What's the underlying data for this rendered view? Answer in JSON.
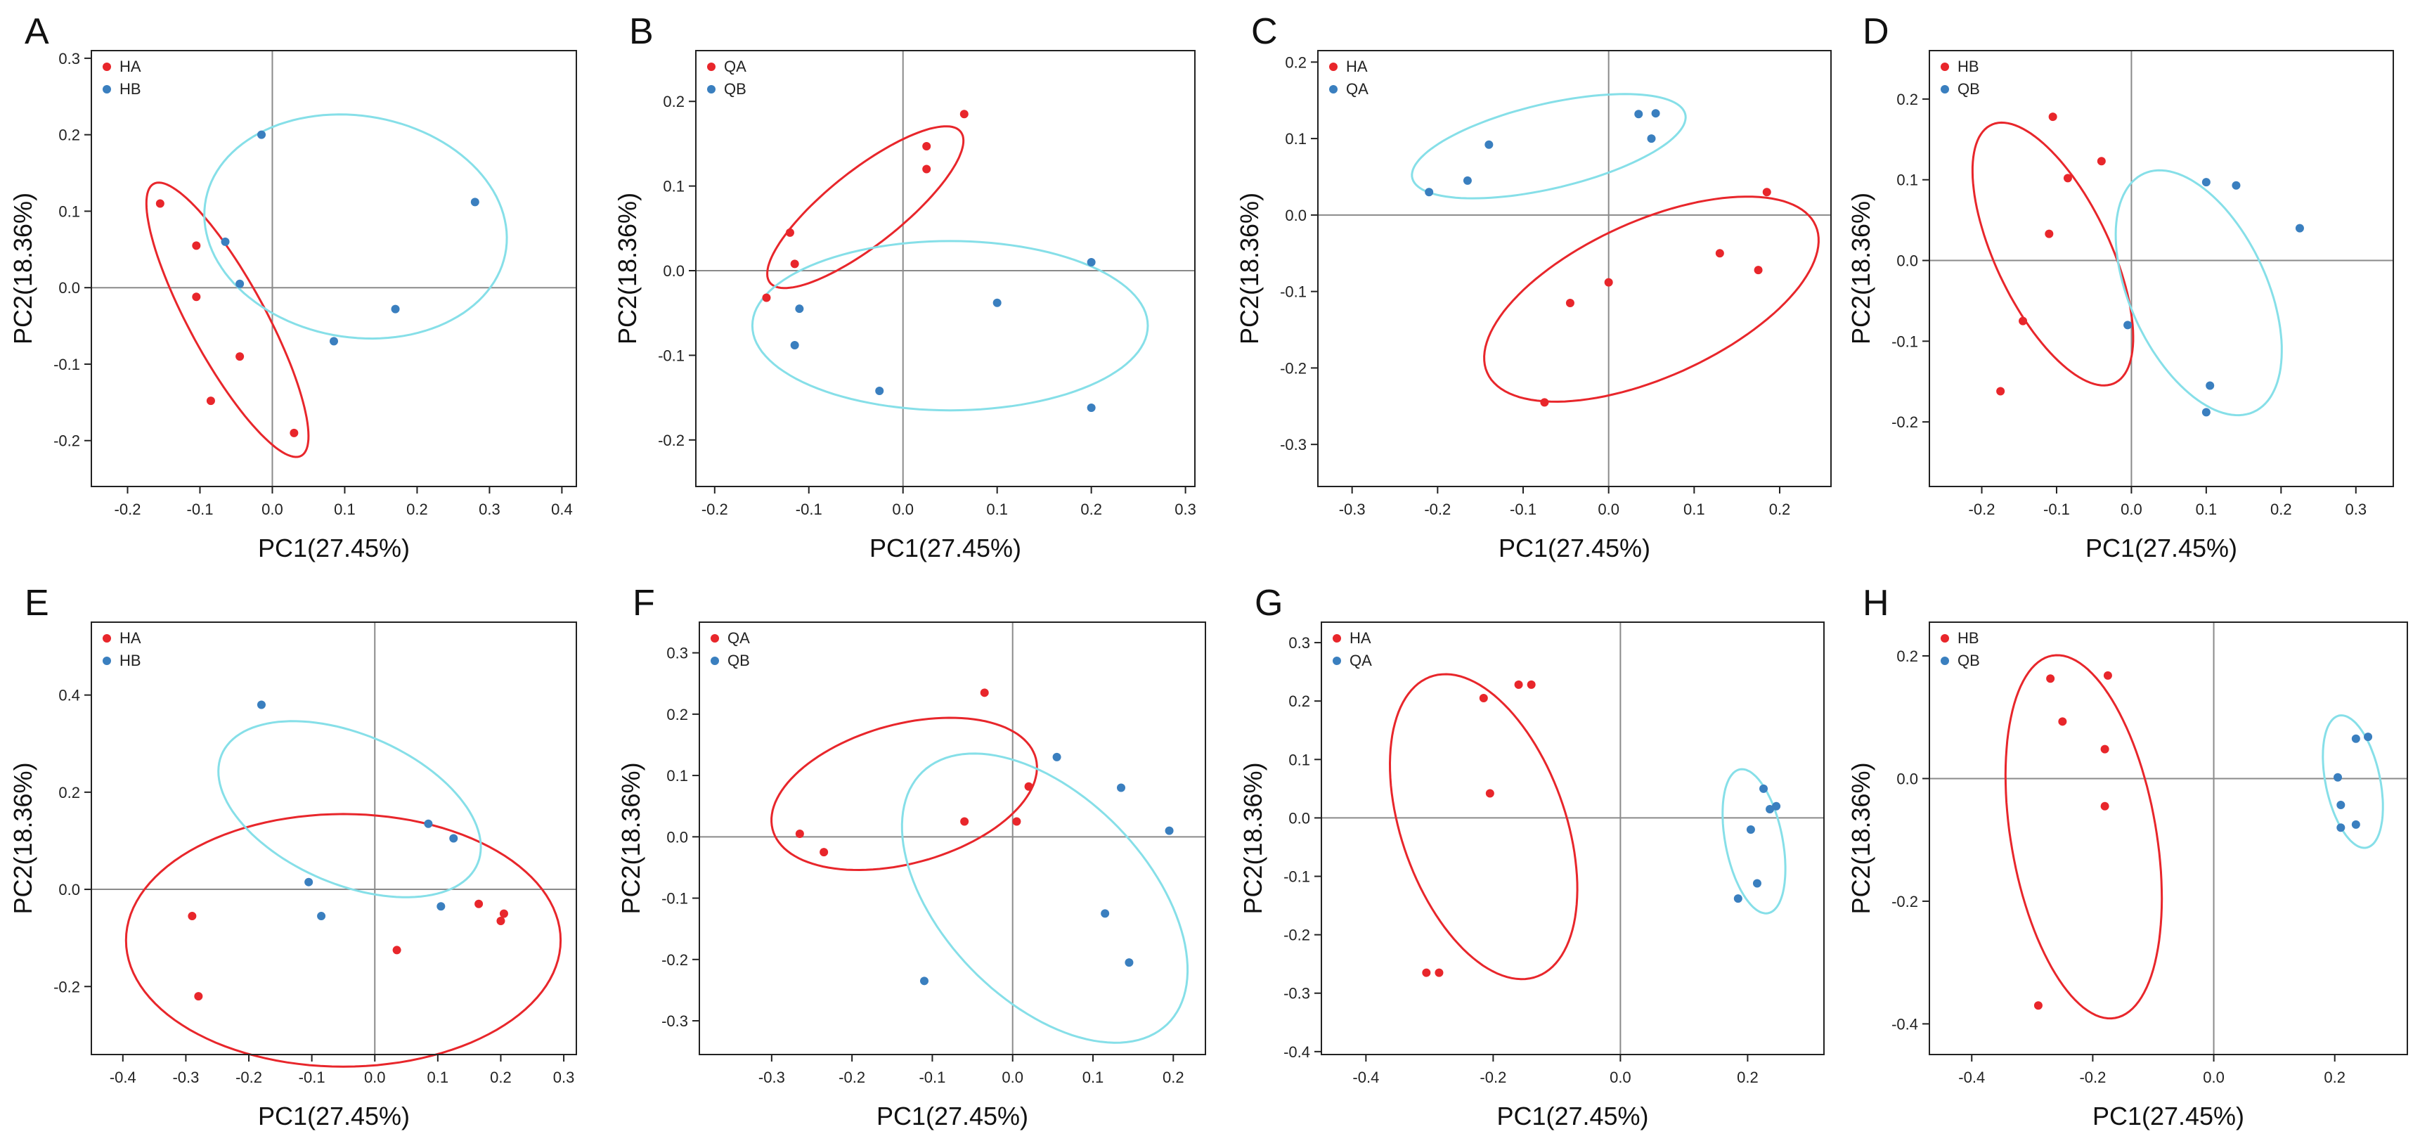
{
  "colors": {
    "red": "#e8262b",
    "blue": "#3a7fbf",
    "ellipse_blue": "#86dfe8",
    "ellipse_red": "#e8262b",
    "axis": "#222222",
    "zero": "#8a8a8a"
  },
  "chart_data": [
    {
      "type": "scatter",
      "panel_label": "A",
      "xlabel": "PC1(27.45%)",
      "ylabel": "PC2(18.36%)",
      "xlim": [
        -0.25,
        0.42
      ],
      "ylim": [
        -0.26,
        0.31
      ],
      "xticks": [
        -0.2,
        -0.1,
        0.0,
        0.1,
        0.2,
        0.3,
        0.4
      ],
      "xtick_labels": [
        "-0.2",
        "-0.1",
        "0.0",
        "0.1",
        "0.2",
        "0.3",
        "0.4"
      ],
      "yticks": [
        -0.2,
        -0.1,
        0.0,
        0.1,
        0.2,
        0.3
      ],
      "ytick_labels": [
        "-0.2",
        "-0.1",
        "0.0",
        "0.1",
        "0.2",
        "0.3"
      ],
      "series": [
        {
          "name": "HA",
          "color": "red",
          "points": [
            [
              -0.155,
              0.11
            ],
            [
              -0.105,
              0.055
            ],
            [
              -0.105,
              -0.012
            ],
            [
              -0.045,
              -0.09
            ],
            [
              -0.085,
              -0.148
            ],
            [
              0.03,
              -0.19
            ]
          ],
          "ellipse": {
            "cx": -0.062,
            "cy": -0.042,
            "rx": 0.205,
            "ry": 0.052,
            "angle": -60
          }
        },
        {
          "name": "HB",
          "color": "blue",
          "points": [
            [
              -0.015,
              0.2
            ],
            [
              -0.065,
              0.06
            ],
            [
              -0.045,
              0.005
            ],
            [
              0.085,
              -0.07
            ],
            [
              0.17,
              -0.028
            ],
            [
              0.28,
              0.112
            ]
          ],
          "ellipse": {
            "cx": 0.115,
            "cy": 0.08,
            "rx": 0.21,
            "ry": 0.145,
            "angle": -8
          }
        }
      ]
    },
    {
      "type": "scatter",
      "panel_label": "B",
      "xlabel": "PC1(27.45%)",
      "ylabel": "PC2(18.36%)",
      "xlim": [
        -0.22,
        0.31
      ],
      "ylim": [
        -0.255,
        0.26
      ],
      "xticks": [
        -0.2,
        -0.1,
        0.0,
        0.1,
        0.2,
        0.3
      ],
      "xtick_labels": [
        "-0.2",
        "-0.1",
        "0.0",
        "0.1",
        "0.2",
        "0.3"
      ],
      "yticks": [
        -0.2,
        -0.1,
        0.0,
        0.1,
        0.2
      ],
      "ytick_labels": [
        "-0.2",
        "-0.1",
        "0.0",
        "0.1",
        "0.2"
      ],
      "series": [
        {
          "name": "QA",
          "color": "red",
          "points": [
            [
              0.065,
              0.185
            ],
            [
              0.025,
              0.147
            ],
            [
              0.025,
              0.12
            ],
            [
              -0.12,
              0.045
            ],
            [
              -0.115,
              0.008
            ],
            [
              -0.145,
              -0.032
            ]
          ],
          "ellipse": {
            "cx": -0.04,
            "cy": 0.075,
            "rx": 0.135,
            "ry": 0.042,
            "angle": 42
          }
        },
        {
          "name": "QB",
          "color": "blue",
          "points": [
            [
              0.2,
              0.01
            ],
            [
              0.1,
              -0.038
            ],
            [
              -0.11,
              -0.045
            ],
            [
              -0.115,
              -0.088
            ],
            [
              -0.025,
              -0.142
            ],
            [
              0.2,
              -0.162
            ]
          ],
          "ellipse": {
            "cx": 0.05,
            "cy": -0.065,
            "rx": 0.21,
            "ry": 0.1,
            "angle": 0
          }
        }
      ]
    },
    {
      "type": "scatter",
      "panel_label": "C",
      "xlabel": "PC1(27.45%)",
      "ylabel": "PC2(18.36%)",
      "xlim": [
        -0.34,
        0.26
      ],
      "ylim": [
        -0.355,
        0.215
      ],
      "xticks": [
        -0.3,
        -0.2,
        -0.1,
        0.0,
        0.1,
        0.2
      ],
      "xtick_labels": [
        "-0.3",
        "-0.2",
        "-0.1",
        "0.0",
        "0.1",
        "0.2"
      ],
      "yticks": [
        -0.3,
        -0.2,
        -0.1,
        0.0,
        0.1,
        0.2
      ],
      "ytick_labels": [
        "-0.3",
        "-0.2",
        "-0.1",
        "0.0",
        "0.1",
        "0.2"
      ],
      "series": [
        {
          "name": "HA",
          "color": "red",
          "points": [
            [
              0.185,
              0.03
            ],
            [
              0.13,
              -0.05
            ],
            [
              0.175,
              -0.072
            ],
            [
              0.0,
              -0.088
            ],
            [
              -0.045,
              -0.115
            ],
            [
              -0.075,
              -0.245
            ]
          ],
          "ellipse": {
            "cx": 0.05,
            "cy": -0.11,
            "rx": 0.215,
            "ry": 0.1,
            "angle": 28
          }
        },
        {
          "name": "QA",
          "color": "blue",
          "points": [
            [
              0.035,
              0.132
            ],
            [
              0.055,
              0.133
            ],
            [
              0.05,
              0.1
            ],
            [
              -0.14,
              0.092
            ],
            [
              -0.165,
              0.045
            ],
            [
              -0.21,
              0.03
            ]
          ],
          "ellipse": {
            "cx": -0.07,
            "cy": 0.09,
            "rx": 0.165,
            "ry": 0.055,
            "angle": 15
          }
        }
      ]
    },
    {
      "type": "scatter",
      "panel_label": "D",
      "xlabel": "PC1(27.45%)",
      "ylabel": "PC2(18.36%)",
      "xlim": [
        -0.27,
        0.35
      ],
      "ylim": [
        -0.28,
        0.26
      ],
      "xticks": [
        -0.2,
        -0.1,
        0.0,
        0.1,
        0.2,
        0.3
      ],
      "xtick_labels": [
        "-0.2",
        "-0.1",
        "0.0",
        "0.1",
        "0.2",
        "0.3"
      ],
      "yticks": [
        -0.2,
        -0.1,
        0.0,
        0.1,
        0.2
      ],
      "ytick_labels": [
        "-0.2",
        "-0.1",
        "0.0",
        "0.1",
        "0.2"
      ],
      "series": [
        {
          "name": "HB",
          "color": "red",
          "points": [
            [
              -0.105,
              0.178
            ],
            [
              -0.04,
              0.123
            ],
            [
              -0.085,
              0.102
            ],
            [
              -0.11,
              0.033
            ],
            [
              -0.145,
              -0.075
            ],
            [
              -0.175,
              -0.162
            ]
          ],
          "ellipse": {
            "cx": -0.105,
            "cy": 0.008,
            "rx": 0.18,
            "ry": 0.075,
            "angle": -62
          }
        },
        {
          "name": "QB",
          "color": "blue",
          "points": [
            [
              0.1,
              0.097
            ],
            [
              0.14,
              0.093
            ],
            [
              0.225,
              0.04
            ],
            [
              -0.005,
              -0.08
            ],
            [
              0.105,
              -0.155
            ],
            [
              0.1,
              -0.188
            ]
          ],
          "ellipse": {
            "cx": 0.09,
            "cy": -0.04,
            "rx": 0.165,
            "ry": 0.09,
            "angle": -62
          }
        }
      ]
    },
    {
      "type": "scatter",
      "panel_label": "E",
      "xlabel": "PC1(27.45%)",
      "ylabel": "PC2(18.36%)",
      "xlim": [
        -0.45,
        0.32
      ],
      "ylim": [
        -0.34,
        0.55
      ],
      "xticks": [
        -0.4,
        -0.3,
        -0.2,
        -0.1,
        0.0,
        0.1,
        0.2,
        0.3
      ],
      "xtick_labels": [
        "-0.4",
        "-0.3",
        "-0.2",
        "-0.1",
        "0.0",
        "0.1",
        "0.2",
        "0.3"
      ],
      "yticks": [
        -0.2,
        0.0,
        0.2,
        0.4
      ],
      "ytick_labels": [
        "-0.2",
        "0.0",
        "0.2",
        "0.4"
      ],
      "series": [
        {
          "name": "HA",
          "color": "red",
          "points": [
            [
              -0.29,
              -0.055
            ],
            [
              -0.28,
              -0.22
            ],
            [
              0.035,
              -0.125
            ],
            [
              0.165,
              -0.03
            ],
            [
              0.205,
              -0.05
            ],
            [
              0.2,
              -0.065
            ]
          ],
          "ellipse": {
            "cx": -0.05,
            "cy": -0.105,
            "rx": 0.345,
            "ry": 0.26,
            "angle": 0
          }
        },
        {
          "name": "HB",
          "color": "blue",
          "points": [
            [
              -0.18,
              0.38
            ],
            [
              0.085,
              0.135
            ],
            [
              0.125,
              0.105
            ],
            [
              -0.105,
              0.015
            ],
            [
              -0.085,
              -0.055
            ],
            [
              0.105,
              -0.035
            ]
          ],
          "ellipse": {
            "cx": -0.04,
            "cy": 0.165,
            "rx": 0.235,
            "ry": 0.145,
            "angle": -36
          }
        }
      ]
    },
    {
      "type": "scatter",
      "panel_label": "F",
      "xlabel": "PC1(27.45%)",
      "ylabel": "PC2(18.36%)",
      "xlim": [
        -0.39,
        0.24
      ],
      "ylim": [
        -0.355,
        0.35
      ],
      "xticks": [
        -0.3,
        -0.2,
        -0.1,
        0.0,
        0.1,
        0.2
      ],
      "xtick_labels": [
        "-0.3",
        "-0.2",
        "-0.1",
        "0.0",
        "0.1",
        "0.2"
      ],
      "yticks": [
        -0.3,
        -0.2,
        -0.1,
        0.0,
        0.1,
        0.2,
        0.3
      ],
      "ytick_labels": [
        "-0.3",
        "-0.2",
        "-0.1",
        "0.0",
        "0.1",
        "0.2",
        "0.3"
      ],
      "series": [
        {
          "name": "QA",
          "color": "red",
          "points": [
            [
              -0.035,
              0.235
            ],
            [
              -0.265,
              0.005
            ],
            [
              -0.235,
              -0.025
            ],
            [
              -0.06,
              0.025
            ],
            [
              0.005,
              0.025
            ],
            [
              0.02,
              0.082
            ]
          ],
          "ellipse": {
            "cx": -0.135,
            "cy": 0.07,
            "rx": 0.175,
            "ry": 0.11,
            "angle": 25
          }
        },
        {
          "name": "QB",
          "color": "blue",
          "points": [
            [
              0.055,
              0.13
            ],
            [
              0.135,
              0.08
            ],
            [
              0.195,
              0.01
            ],
            [
              0.115,
              -0.125
            ],
            [
              -0.11,
              -0.235
            ],
            [
              0.145,
              -0.205
            ]
          ],
          "ellipse": {
            "cx": 0.04,
            "cy": -0.1,
            "rx": 0.26,
            "ry": 0.14,
            "angle": -60
          }
        }
      ]
    },
    {
      "type": "scatter",
      "panel_label": "G",
      "xlabel": "PC1(27.45%)",
      "ylabel": "PC2(18.36%)",
      "xlim": [
        -0.47,
        0.32
      ],
      "ylim": [
        -0.405,
        0.335
      ],
      "xticks": [
        -0.4,
        -0.2,
        0.0,
        0.2
      ],
      "xtick_labels": [
        "-0.4",
        "-0.2",
        "0.0",
        "0.2"
      ],
      "yticks": [
        -0.4,
        -0.3,
        -0.2,
        -0.1,
        0.0,
        0.1,
        0.2,
        0.3
      ],
      "ytick_labels": [
        "-0.4",
        "-0.3",
        "-0.2",
        "-0.1",
        "0.0",
        "0.1",
        "0.2",
        "0.3"
      ],
      "series": [
        {
          "name": "HA",
          "color": "red",
          "points": [
            [
              -0.16,
              0.228
            ],
            [
              -0.14,
              0.228
            ],
            [
              -0.215,
              0.205
            ],
            [
              -0.205,
              0.042
            ],
            [
              -0.305,
              -0.265
            ],
            [
              -0.285,
              -0.265
            ]
          ],
          "ellipse": {
            "cx": -0.215,
            "cy": -0.015,
            "rx": 0.27,
            "ry": 0.13,
            "angle": -73
          }
        },
        {
          "name": "QA",
          "color": "blue",
          "points": [
            [
              0.225,
              0.05
            ],
            [
              0.235,
              0.015
            ],
            [
              0.245,
              0.02
            ],
            [
              0.205,
              -0.02
            ],
            [
              0.215,
              -0.112
            ],
            [
              0.185,
              -0.138
            ]
          ],
          "ellipse": {
            "cx": 0.21,
            "cy": -0.04,
            "rx": 0.125,
            "ry": 0.045,
            "angle": -80
          }
        }
      ]
    },
    {
      "type": "scatter",
      "panel_label": "H",
      "xlabel": "PC1(27.45%)",
      "ylabel": "PC2(18.36%)",
      "xlim": [
        -0.47,
        0.32
      ],
      "ylim": [
        -0.45,
        0.255
      ],
      "xticks": [
        -0.4,
        -0.2,
        0.0,
        0.2
      ],
      "xtick_labels": [
        "-0.4",
        "-0.2",
        "0.0",
        "0.2"
      ],
      "yticks": [
        -0.4,
        -0.2,
        0.0,
        0.2
      ],
      "ytick_labels": [
        "-0.4",
        "-0.2",
        "0.0",
        "0.2"
      ],
      "series": [
        {
          "name": "HB",
          "color": "red",
          "points": [
            [
              -0.27,
              0.163
            ],
            [
              -0.175,
              0.168
            ],
            [
              -0.25,
              0.093
            ],
            [
              -0.18,
              0.048
            ],
            [
              -0.18,
              -0.045
            ],
            [
              -0.29,
              -0.37
            ]
          ],
          "ellipse": {
            "cx": -0.215,
            "cy": -0.095,
            "rx": 0.3,
            "ry": 0.12,
            "angle": -80
          }
        },
        {
          "name": "QB",
          "color": "blue",
          "points": [
            [
              0.235,
              0.065
            ],
            [
              0.255,
              0.068
            ],
            [
              0.205,
              0.002
            ],
            [
              0.21,
              -0.043
            ],
            [
              0.21,
              -0.08
            ],
            [
              0.235,
              -0.075
            ]
          ],
          "ellipse": {
            "cx": 0.23,
            "cy": -0.005,
            "rx": 0.11,
            "ry": 0.045,
            "angle": -78
          }
        }
      ]
    }
  ]
}
